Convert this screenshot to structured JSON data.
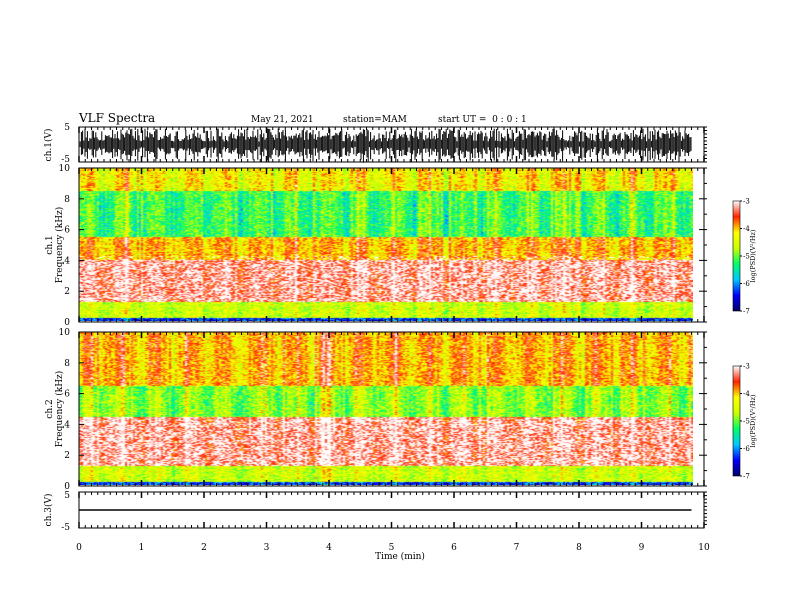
{
  "header": {
    "title": "VLF Spectra",
    "date": "May 21, 2021",
    "station": "station=MAM",
    "start_ut": "start UT =  0 : 0 : 1"
  },
  "colors": {
    "spectrum_scale": [
      "#000066",
      "#0000ff",
      "#00c8ff",
      "#00ff66",
      "#ccff00",
      "#ffff00",
      "#ff2200",
      "#ffffff"
    ],
    "trace": "#000000"
  },
  "chart_data": [
    {
      "type": "line",
      "panel": "ch1-waveform",
      "ylabel": "ch.1(V)",
      "xlim": [
        0,
        10
      ],
      "ylim": [
        -5,
        5
      ],
      "yticks": [
        "5",
        "-5"
      ],
      "description_series": [
        {
          "values_range": [
            -5,
            5
          ]
        }
      ]
    },
    {
      "type": "heatmap",
      "panel": "ch1-spectrogram",
      "ylabel_line1": "ch.1",
      "ylabel_line2": "Frequency (kHz)",
      "xlim": [
        0,
        10
      ],
      "ylim": [
        0,
        10
      ],
      "yticks": [
        "0",
        "2",
        "4",
        "6",
        "8",
        "10"
      ],
      "colorbar": {
        "label": "log(PSD)(V²/Hz)",
        "range": [
          -7,
          -3
        ],
        "ticks": [
          "-3",
          "-4",
          "-5",
          "-6",
          "-7"
        ]
      },
      "bands": [
        {
          "f_low": 0,
          "f_high": 0.25,
          "level": -6.3
        },
        {
          "f_low": 0.25,
          "f_high": 1.3,
          "level": -4.6
        },
        {
          "f_low": 1.3,
          "f_high": 4.0,
          "level": -3.3
        },
        {
          "f_low": 4.0,
          "f_high": 5.5,
          "level": -4.0
        },
        {
          "f_low": 5.5,
          "f_high": 8.5,
          "level": -5.2
        },
        {
          "f_low": 8.5,
          "f_high": 10,
          "level": -4.3
        }
      ]
    },
    {
      "type": "heatmap",
      "panel": "ch2-spectrogram",
      "ylabel_line1": "ch.2",
      "ylabel_line2": "Frequency (kHz)",
      "xlim": [
        0,
        10
      ],
      "ylim": [
        0,
        10
      ],
      "yticks": [
        "0",
        "2",
        "4",
        "6",
        "8",
        "10"
      ],
      "colorbar": {
        "label": "log(PSD)(V²/Hz)",
        "range": [
          -7,
          -3
        ],
        "ticks": [
          "-3",
          "-4",
          "-5",
          "-6",
          "-7"
        ]
      },
      "bands": [
        {
          "f_low": 0,
          "f_high": 0.25,
          "level": -6.3
        },
        {
          "f_low": 0.25,
          "f_high": 1.3,
          "level": -4.6
        },
        {
          "f_low": 1.3,
          "f_high": 4.5,
          "level": -3.3
        },
        {
          "f_low": 4.5,
          "f_high": 6.5,
          "level": -4.9
        },
        {
          "f_low": 6.5,
          "f_high": 10,
          "level": -4.0
        }
      ]
    },
    {
      "type": "line",
      "panel": "ch3-waveform",
      "ylabel": "ch.3(V)",
      "xlim": [
        0,
        10
      ],
      "ylim": [
        -5,
        5
      ],
      "yticks": [
        "5",
        "-5"
      ],
      "series": [
        {
          "x": [
            0,
            9.8
          ],
          "values": [
            0,
            0
          ]
        }
      ],
      "xlabel": "Time (min)",
      "xticks": [
        "0",
        "1",
        "2",
        "3",
        "4",
        "5",
        "6",
        "7",
        "8",
        "9",
        "10"
      ]
    }
  ]
}
